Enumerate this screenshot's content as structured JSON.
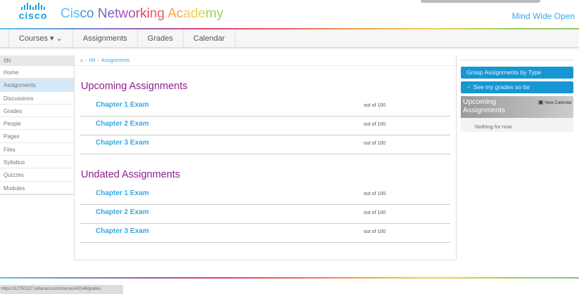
{
  "header": {
    "logo_text": "cisco",
    "brand": "Cisco Networking Academy",
    "brand_colors": [
      "#5bc0eb",
      "#4a90d9",
      "#6a6ad0",
      "#9b59b6",
      "#e0406a",
      "#f06060",
      "#f5a050",
      "#f0d050",
      "#a0d060"
    ],
    "tagline": "Mind Wide Open"
  },
  "nav": {
    "items": [
      {
        "label": "Courses ▾  ⌄"
      },
      {
        "label": "Assignments"
      },
      {
        "label": "Grades"
      },
      {
        "label": "Calendar"
      }
    ]
  },
  "sidebar": {
    "title": "ItN",
    "items": [
      "Home",
      "Assignments",
      "Discussions",
      "Grades",
      "People",
      "Pages",
      "Files",
      "Syllabus",
      "Quizzes",
      "Modules"
    ],
    "active": "Assignments"
  },
  "breadcrumb": {
    "items": [
      "ItN",
      "Assignments"
    ]
  },
  "main": {
    "sections": [
      {
        "title": "Upcoming Assignments",
        "rows": [
          {
            "name": "Chapter 1 Exam",
            "points": "out of 100"
          },
          {
            "name": "Chapter 2 Exam",
            "points": "out of 100"
          },
          {
            "name": "Chapter 3 Exam",
            "points": "out of 100"
          }
        ]
      },
      {
        "title": "Undated Assignments",
        "rows": [
          {
            "name": "Chapter 1 Exam",
            "points": "out of 100"
          },
          {
            "name": "Chapter 2 Exam",
            "points": "out of 100"
          },
          {
            "name": "Chapter 3 Exam",
            "points": "out of 100"
          }
        ]
      }
    ]
  },
  "right": {
    "group_btn": "Group Assignments by Type",
    "grades_btn": "See my grades so far",
    "upcoming_title": "Upcoming Assignments",
    "view_calendar": "View Calendar",
    "nothing": "Nothing for now"
  },
  "status_url": "https://12750127.netacad.com/courses/42146/grades"
}
